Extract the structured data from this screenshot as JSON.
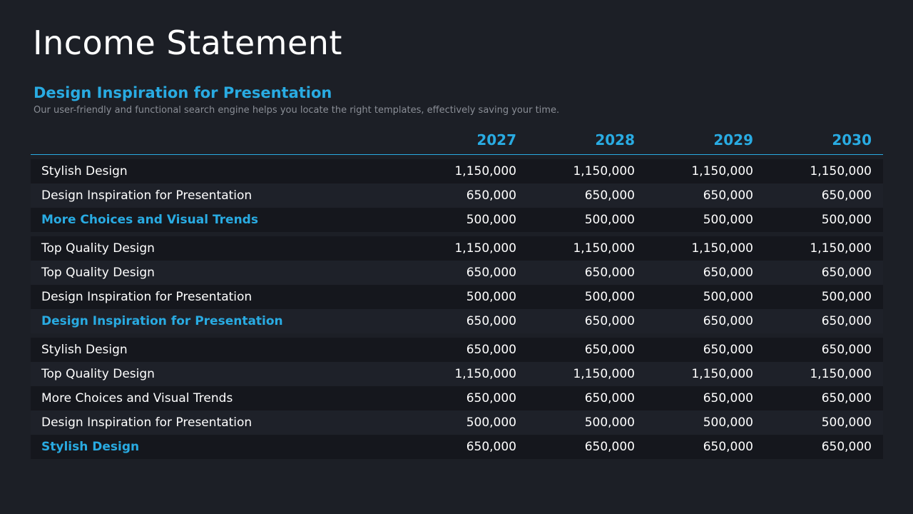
{
  "title": "Income Statement",
  "subtitle": "Design Inspiration for Presentation",
  "description": "Our user-friendly and functional search engine helps you locate the right templates, effectively saving your time.",
  "accent_color": "#29abe2",
  "table": {
    "years": [
      "2027",
      "2028",
      "2029",
      "2030"
    ],
    "groups": [
      {
        "rows": [
          {
            "label": "Stylish Design",
            "values": [
              "1,150,000",
              "1,150,000",
              "1,150,000",
              "1,150,000"
            ],
            "total": false
          },
          {
            "label": "Design Inspiration for Presentation",
            "values": [
              "650,000",
              "650,000",
              "650,000",
              "650,000"
            ],
            "total": false
          },
          {
            "label": "More Choices and Visual Trends",
            "values": [
              "500,000",
              "500,000",
              "500,000",
              "500,000"
            ],
            "total": true
          }
        ]
      },
      {
        "rows": [
          {
            "label": "Top Quality Design",
            "values": [
              "1,150,000",
              "1,150,000",
              "1,150,000",
              "1,150,000"
            ],
            "total": false
          },
          {
            "label": "Top Quality Design",
            "values": [
              "650,000",
              "650,000",
              "650,000",
              "650,000"
            ],
            "total": false
          },
          {
            "label": "Design Inspiration for Presentation",
            "values": [
              "500,000",
              "500,000",
              "500,000",
              "500,000"
            ],
            "total": false
          },
          {
            "label": "Design Inspiration for Presentation",
            "values": [
              "650,000",
              "650,000",
              "650,000",
              "650,000"
            ],
            "total": true
          }
        ]
      },
      {
        "rows": [
          {
            "label": "Stylish Design",
            "values": [
              "650,000",
              "650,000",
              "650,000",
              "650,000"
            ],
            "total": false
          },
          {
            "label": "Top Quality Design",
            "values": [
              "1,150,000",
              "1,150,000",
              "1,150,000",
              "1,150,000"
            ],
            "total": false
          },
          {
            "label": "More Choices and Visual Trends",
            "values": [
              "650,000",
              "650,000",
              "650,000",
              "650,000"
            ],
            "total": false
          },
          {
            "label": "Design Inspiration for Presentation",
            "values": [
              "500,000",
              "500,000",
              "500,000",
              "500,000"
            ],
            "total": false
          },
          {
            "label": "Stylish Design",
            "values": [
              "650,000",
              "650,000",
              "650,000",
              "650,000"
            ],
            "total": true
          }
        ]
      }
    ]
  }
}
